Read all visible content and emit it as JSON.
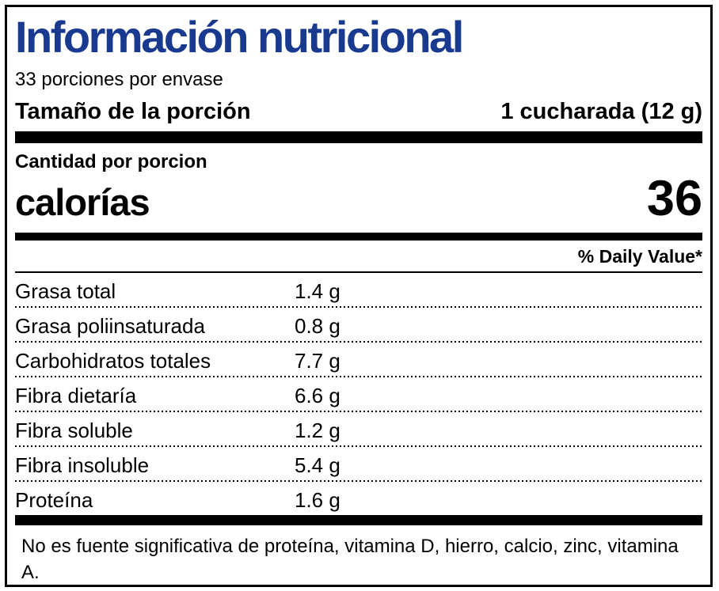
{
  "label": {
    "title": "Información nutricional",
    "servings_per_container": "33 porciones por envase",
    "serving_size": {
      "label": "Tamaño de la porción",
      "value": "1 cucharada (12 g)"
    },
    "amount_per_serving": "Cantidad por porcion",
    "calories": {
      "label": "calorías",
      "value": "36"
    },
    "daily_value_header": "% Daily Value*",
    "nutrients": [
      {
        "name": "Grasa total",
        "amount": "1.4 g"
      },
      {
        "name": "Grasa poliinsaturada",
        "amount": "0.8 g"
      },
      {
        "name": "Carbohidratos totales",
        "amount": "7.7 g"
      },
      {
        "name": "Fibra dietaría",
        "amount": "6.6 g"
      },
      {
        "name": "Fibra soluble",
        "amount": "1.2 g"
      },
      {
        "name": "Fibra insoluble",
        "amount": "5.4 g"
      },
      {
        "name": "Proteína",
        "amount": "1.6 g"
      }
    ],
    "footnote": "No es fuente significativa de proteína, vitamina D, hierro, calcio, zinc, vitamina A.",
    "colors": {
      "title_blue": "#1a3a8f",
      "text": "#000000",
      "background": "#ffffff"
    }
  }
}
